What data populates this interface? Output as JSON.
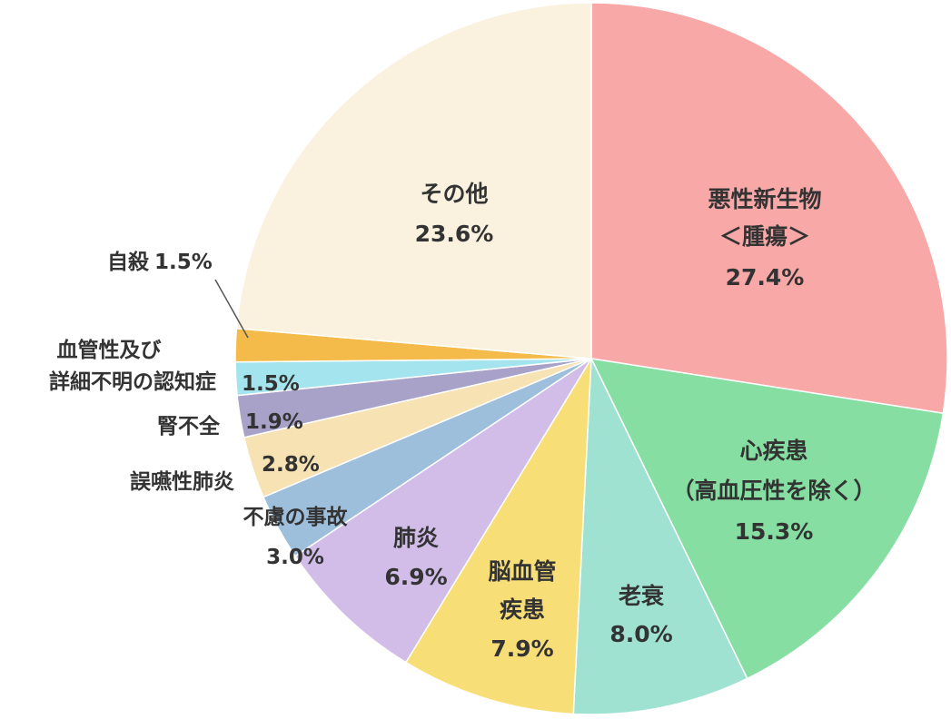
{
  "chart_data": {
    "type": "pie",
    "title": "",
    "start_angle_deg": 0,
    "direction": "clockwise",
    "slices": [
      {
        "name": "悪性新生物",
        "name2": "＜腫瘍＞",
        "value": 27.4,
        "pct_label": "27.4%",
        "color": "#f9a8a8"
      },
      {
        "name": "心疾患",
        "name2": "（高血圧性を除く）",
        "value": 15.3,
        "pct_label": "15.3%",
        "color": "#86dea2"
      },
      {
        "name": "老衰",
        "name2": "",
        "value": 8.0,
        "pct_label": "8.0%",
        "color": "#9fe2d2"
      },
      {
        "name": "脳血管",
        "name2": "疾患",
        "value": 7.9,
        "pct_label": "7.9%",
        "color": "#f8de76"
      },
      {
        "name": "肺炎",
        "name2": "",
        "value": 6.9,
        "pct_label": "6.9%",
        "color": "#d1bde8"
      },
      {
        "name": "不慮の事故",
        "name2": "",
        "value": 3.0,
        "pct_label": "3.0%",
        "color": "#9ebfdc"
      },
      {
        "name": "誤嚥性肺炎",
        "name2": "",
        "value": 2.8,
        "pct_label": "2.8%",
        "color": "#f6e2b2"
      },
      {
        "name": "腎不全",
        "name2": "",
        "value": 1.9,
        "pct_label": "1.9%",
        "color": "#a8a2c8"
      },
      {
        "name": "血管性及び",
        "name2": "詳細不明の認知症",
        "value": 1.5,
        "pct_label": "1.5%",
        "color": "#a4e4ee"
      },
      {
        "name": "自殺",
        "name2": "",
        "value": 1.5,
        "pct_label": "1.5%",
        "color": "#f4bb4a"
      },
      {
        "name": "その他",
        "name2": "",
        "value": 23.6,
        "pct_label": "23.6%",
        "color": "#faf1df"
      }
    ]
  }
}
